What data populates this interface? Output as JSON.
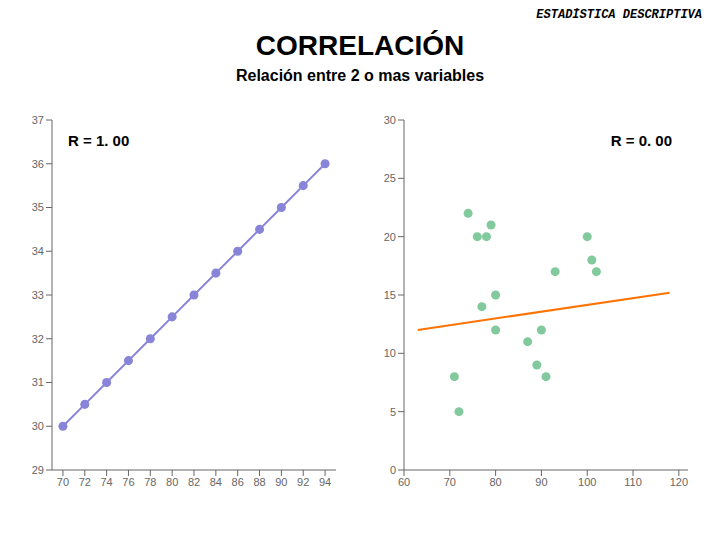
{
  "title": "CORRELACIÓN",
  "subtitle": "Relación entre 2 o mas variables",
  "annotations": [
    "ESTADÍSTICA DESCRIPTIVA"
  ],
  "chart_data": [
    {
      "type": "line",
      "marker": "o",
      "annotations": [
        "R = 1. 00"
      ],
      "x": [
        70,
        72,
        74,
        76,
        78,
        80,
        82,
        84,
        86,
        88,
        90,
        92,
        94
      ],
      "values": [
        30.0,
        30.5,
        31.0,
        31.5,
        32.0,
        32.5,
        33.0,
        33.5,
        34.0,
        34.5,
        35.0,
        35.5,
        36.0
      ],
      "xlim": [
        69,
        95
      ],
      "ylim": [
        29,
        37
      ],
      "xticks": [
        70,
        72,
        74,
        76,
        78,
        80,
        82,
        84,
        86,
        88,
        90,
        92,
        94
      ],
      "yticks": [
        29,
        30,
        31,
        32,
        33,
        34,
        35,
        36,
        37
      ]
    },
    {
      "type": "scatter",
      "annotations": [
        "R = 0. 00"
      ],
      "series": [
        {
          "type": "scatter",
          "marker": "o",
          "x": [
            71,
            72,
            74,
            76,
            77,
            78,
            79,
            80,
            80,
            87,
            89,
            90,
            91,
            93,
            100,
            101,
            102
          ],
          "values": [
            8,
            5,
            22,
            20,
            14,
            20,
            21,
            15,
            12,
            11,
            9,
            12,
            8,
            17,
            20,
            18,
            17
          ]
        },
        {
          "type": "line",
          "x": [
            63,
            118
          ],
          "values": [
            12.0,
            15.2
          ]
        }
      ],
      "xlim": [
        60,
        122
      ],
      "ylim": [
        0,
        30
      ],
      "xticks": [
        60,
        70,
        80,
        90,
        100,
        110,
        120
      ],
      "yticks": [
        0,
        5,
        10,
        15,
        20,
        25,
        30
      ]
    }
  ]
}
